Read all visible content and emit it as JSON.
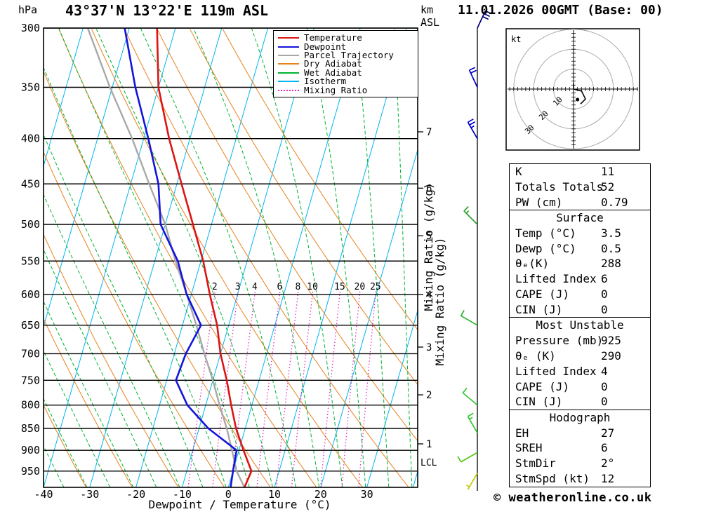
{
  "header": {
    "title": "43°37'N 13°22'E 119m ASL",
    "datetime": "11.01.2026 00GMT (Base: 00)"
  },
  "axes": {
    "pressure_unit": "hPa",
    "height_unit_line1": "km",
    "height_unit_line2": "ASL",
    "x_title": "Dewpoint / Temperature (°C)",
    "pressure_ticks_hpa": [
      300,
      350,
      400,
      450,
      500,
      550,
      600,
      650,
      700,
      750,
      800,
      850,
      900,
      950
    ],
    "temp_ticks_c": [
      -40,
      -30,
      -20,
      -10,
      0,
      10,
      20,
      30
    ],
    "km_ticks": [
      7,
      6,
      5,
      4,
      3,
      2,
      1
    ],
    "mixing_ratio_axis_label": "Mixing Ratio (g/kg)",
    "lcl_label": "LCL"
  },
  "legend": [
    {
      "label": "Temperature",
      "color": "#dc1414",
      "style": "solid"
    },
    {
      "label": "Dewpoint",
      "color": "#1414dc",
      "style": "solid"
    },
    {
      "label": "Parcel Trajectory",
      "color": "#a8a8a8",
      "style": "solid"
    },
    {
      "label": "Dry Adiabat",
      "color": "#e8821e",
      "style": "solid"
    },
    {
      "label": "Wet Adiabat",
      "color": "#00b432",
      "style": "solid"
    },
    {
      "label": "Isotherm",
      "color": "#00b4f0",
      "style": "solid"
    },
    {
      "label": "Mixing Ratio",
      "color": "#e020c0",
      "style": "dotted"
    }
  ],
  "colors": {
    "grid": "#000000",
    "temperature": "#dc1414",
    "dewpoint": "#1414dc",
    "parcel": "#a8a8a8",
    "dry_adiabat": "#e8821e",
    "wet_adiabat": "#00b432",
    "isotherm": "#00b4f0",
    "mixing_ratio": "#e020c0",
    "mixing_ratio_axis_pink": "#f0a8d2",
    "lcl": "#999999",
    "wind_column": "#000000",
    "hodo_ring": "#aaaaaa",
    "hodo_label": "#999999"
  },
  "chart_data": {
    "type": "line",
    "variant": "skew-t-log-p-sounding",
    "x_range_c": [
      -40,
      41
    ],
    "pressure_range_hpa": [
      300,
      991
    ],
    "isotherm_step_c": 10,
    "dry_adiabats_theta_k": {
      "min": 233,
      "max": 343,
      "step": 10
    },
    "wet_adiabats_start_c": {
      "min": -40,
      "max": 40,
      "step": 5
    },
    "mixing_ratio_lines_g_kg": [
      2,
      3,
      4,
      6,
      8,
      10,
      15,
      20,
      25
    ],
    "levels_hpa": [
      991,
      950,
      900,
      850,
      800,
      750,
      700,
      650,
      600,
      550,
      500,
      450,
      400,
      350,
      300
    ],
    "temperature_c": [
      3.5,
      4,
      1,
      -2,
      -4.5,
      -7,
      -10,
      -12.5,
      -16,
      -19.5,
      -24,
      -29,
      -34.5,
      -40,
      -44
    ],
    "dewpoint_c": [
      0.5,
      0,
      -0.5,
      -8,
      -14,
      -18,
      -17.5,
      -16,
      -21,
      -25,
      -31,
      -34,
      -39,
      -45,
      -51
    ],
    "parcel_c": [
      3.5,
      0.8,
      -1.5,
      -4,
      -7,
      -10,
      -13.5,
      -17,
      -21,
      -25.5,
      -30,
      -36,
      -42.5,
      -50.5,
      -59
    ],
    "wind_barbs": [
      {
        "p_hpa": 300,
        "spd_kt": 30,
        "dir_deg": 25,
        "color": "#000080"
      },
      {
        "p_hpa": 350,
        "spd_kt": 20,
        "dir_deg": 335,
        "color": "#0000cd"
      },
      {
        "p_hpa": 400,
        "spd_kt": 25,
        "dir_deg": 330,
        "color": "#0000cd"
      },
      {
        "p_hpa": 500,
        "spd_kt": 15,
        "dir_deg": 315,
        "color": "#28a028"
      },
      {
        "p_hpa": 650,
        "spd_kt": 10,
        "dir_deg": 300,
        "color": "#28b428"
      },
      {
        "p_hpa": 800,
        "spd_kt": 10,
        "dir_deg": 310,
        "color": "#32c832"
      },
      {
        "p_hpa": 860,
        "spd_kt": 15,
        "dir_deg": 330,
        "color": "#32c832"
      },
      {
        "p_hpa": 905,
        "spd_kt": 10,
        "dir_deg": 240,
        "color": "#50c814"
      },
      {
        "p_hpa": 955,
        "spd_kt": 5,
        "dir_deg": 210,
        "color": "#c8c800"
      }
    ]
  },
  "hodograph": {
    "unit_label": "kt",
    "rings_kt": [
      10,
      20,
      30
    ],
    "ring_labels": [
      "10",
      "20",
      "30"
    ],
    "trace_kt": [
      [
        0,
        3
      ],
      [
        0,
        0
      ],
      [
        4,
        -1
      ],
      [
        6,
        -5
      ],
      [
        3.5,
        -7.5
      ]
    ],
    "marker_kt": [
      2,
      -5.3
    ]
  },
  "panel": {
    "tables": [
      {
        "title": null,
        "rows": [
          [
            "K",
            "11"
          ],
          [
            "Totals Totals",
            "52"
          ],
          [
            "PW (cm)",
            "0.79"
          ]
        ]
      },
      {
        "title": "Surface",
        "rows": [
          [
            "Temp (°C)",
            "3.5"
          ],
          [
            "Dewp (°C)",
            "0.5"
          ],
          [
            "θₑ(K)",
            "288"
          ],
          [
            "Lifted Index",
            "6"
          ],
          [
            "CAPE (J)",
            "0"
          ],
          [
            "CIN (J)",
            "0"
          ]
        ]
      },
      {
        "title": "Most Unstable",
        "rows": [
          [
            "Pressure (mb)",
            "925"
          ],
          [
            "θₑ (K)",
            "290"
          ],
          [
            "Lifted Index",
            "4"
          ],
          [
            "CAPE (J)",
            "0"
          ],
          [
            "CIN (J)",
            "0"
          ]
        ]
      },
      {
        "title": "Hodograph",
        "rows": [
          [
            "EH",
            "27"
          ],
          [
            "SREH",
            "6"
          ],
          [
            "StmDir",
            "2°"
          ],
          [
            "StmSpd (kt)",
            "12"
          ]
        ]
      }
    ]
  },
  "footer": {
    "copyright": "© weatheronline.co.uk"
  }
}
